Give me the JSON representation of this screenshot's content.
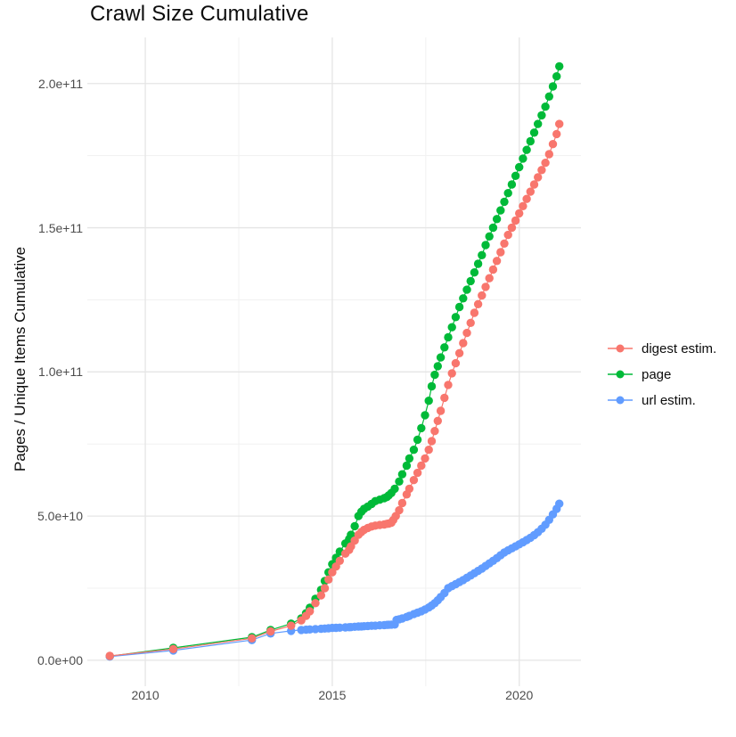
{
  "title": "Crawl Size Cumulative",
  "y_axis_title": "Pages / Unique Items Cumulative",
  "colors": {
    "digest": "#F8766D",
    "page": "#00BA38",
    "url": "#619CFF",
    "grid_major": "#E5E5E5",
    "grid_minor": "#F1F1F1",
    "tick_text": "#4D4D4D",
    "title_text": "#0C0C0C"
  },
  "legend": {
    "position": "right",
    "items": [
      {
        "id": "digest",
        "label": "digest estim.",
        "color": "#F8766D"
      },
      {
        "id": "page",
        "label": "page",
        "color": "#00BA38"
      },
      {
        "id": "url",
        "label": "url estim.",
        "color": "#619CFF"
      }
    ]
  },
  "chart_data": {
    "type": "line",
    "subtype": "line-with-points",
    "title": "Crawl Size Cumulative",
    "xlabel": "",
    "ylabel": "Pages / Unique Items Cumulative",
    "grid": true,
    "legend_position": "right",
    "value_unit": "1e9 pages (value = billions)",
    "xlim": [
      2008.45,
      2021.65
    ],
    "ylim_e9": [
      -9,
      216
    ],
    "x_ticks": [
      2010,
      2015,
      2020
    ],
    "x_tick_labels": [
      "2010",
      "2015",
      "2020"
    ],
    "x_minor_ticks": [
      2012.5,
      2017.5
    ],
    "y_ticks_e9": [
      0,
      50,
      100,
      150,
      200
    ],
    "y_tick_labels": [
      "0.0e+00",
      "5.0e+10",
      "1.0e+11",
      "1.5e+11",
      "2.0e+11"
    ],
    "y_minor_ticks_e9": [
      25,
      75,
      125,
      175
    ],
    "series": [
      {
        "name": "digest estim.",
        "id": "digest",
        "color": "#F8766D",
        "points": [
          [
            2009.05,
            1.5
          ],
          [
            2010.75,
            3.9
          ],
          [
            2012.85,
            7.6
          ],
          [
            2013.35,
            10.0
          ],
          [
            2013.9,
            12.0
          ],
          [
            2014.17,
            13.8
          ],
          [
            2014.3,
            15.4
          ],
          [
            2014.4,
            17.0
          ],
          [
            2014.55,
            19.8
          ],
          [
            2014.7,
            22.5
          ],
          [
            2014.8,
            25.0
          ],
          [
            2014.9,
            28.0
          ],
          [
            2015.0,
            30.5
          ],
          [
            2015.1,
            32.5
          ],
          [
            2015.2,
            34.5
          ],
          [
            2015.35,
            37.0
          ],
          [
            2015.45,
            38.3
          ],
          [
            2015.5,
            39.5
          ],
          [
            2015.6,
            41.5
          ],
          [
            2015.7,
            43.5
          ],
          [
            2015.78,
            44.5
          ],
          [
            2015.85,
            45.2
          ],
          [
            2015.95,
            45.9
          ],
          [
            2016.05,
            46.4
          ],
          [
            2016.15,
            46.7
          ],
          [
            2016.27,
            46.9
          ],
          [
            2016.39,
            47.1
          ],
          [
            2016.46,
            47.3
          ],
          [
            2016.51,
            47.4
          ],
          [
            2016.58,
            47.7
          ],
          [
            2016.63,
            48.6
          ],
          [
            2016.7,
            50.0
          ],
          [
            2016.79,
            52.0
          ],
          [
            2016.87,
            54.5
          ],
          [
            2016.99,
            57.5
          ],
          [
            2017.06,
            59.5
          ],
          [
            2017.18,
            62.5
          ],
          [
            2017.28,
            65.0
          ],
          [
            2017.38,
            67.5
          ],
          [
            2017.48,
            70.0
          ],
          [
            2017.58,
            73.0
          ],
          [
            2017.66,
            76.0
          ],
          [
            2017.74,
            79.5
          ],
          [
            2017.82,
            83.0
          ],
          [
            2017.9,
            86.5
          ],
          [
            2018.0,
            91.0
          ],
          [
            2018.1,
            95.5
          ],
          [
            2018.2,
            99.5
          ],
          [
            2018.3,
            103.0
          ],
          [
            2018.4,
            106.5
          ],
          [
            2018.5,
            110.0
          ],
          [
            2018.6,
            113.5
          ],
          [
            2018.7,
            117.0
          ],
          [
            2018.8,
            120.5
          ],
          [
            2018.9,
            123.5
          ],
          [
            2019.0,
            126.5
          ],
          [
            2019.1,
            129.5
          ],
          [
            2019.2,
            132.5
          ],
          [
            2019.3,
            135.5
          ],
          [
            2019.4,
            138.5
          ],
          [
            2019.5,
            141.5
          ],
          [
            2019.6,
            144.5
          ],
          [
            2019.7,
            147.5
          ],
          [
            2019.8,
            150.0
          ],
          [
            2019.9,
            152.5
          ],
          [
            2020.0,
            155.0
          ],
          [
            2020.1,
            157.5
          ],
          [
            2020.2,
            160.0
          ],
          [
            2020.3,
            162.5
          ],
          [
            2020.4,
            165.0
          ],
          [
            2020.5,
            167.5
          ],
          [
            2020.6,
            170.0
          ],
          [
            2020.7,
            172.5
          ],
          [
            2020.8,
            175.5
          ],
          [
            2020.9,
            179.0
          ],
          [
            2021.0,
            182.5
          ],
          [
            2021.07,
            186.0
          ]
        ]
      },
      {
        "name": "page",
        "id": "page",
        "color": "#00BA38",
        "points": [
          [
            2009.05,
            1.4
          ],
          [
            2010.75,
            4.3
          ],
          [
            2012.85,
            8.0
          ],
          [
            2013.35,
            10.5
          ],
          [
            2013.9,
            12.7
          ],
          [
            2014.17,
            14.5
          ],
          [
            2014.3,
            16.3
          ],
          [
            2014.4,
            18.2
          ],
          [
            2014.55,
            21.3
          ],
          [
            2014.7,
            24.4
          ],
          [
            2014.8,
            27.5
          ],
          [
            2014.9,
            30.5
          ],
          [
            2015.0,
            33.3
          ],
          [
            2015.1,
            35.5
          ],
          [
            2015.2,
            37.7
          ],
          [
            2015.35,
            40.5
          ],
          [
            2015.45,
            42.0
          ],
          [
            2015.5,
            43.5
          ],
          [
            2015.6,
            46.5
          ],
          [
            2015.7,
            50.0
          ],
          [
            2015.78,
            51.5
          ],
          [
            2015.85,
            52.5
          ],
          [
            2015.95,
            53.3
          ],
          [
            2016.05,
            54.2
          ],
          [
            2016.15,
            55.2
          ],
          [
            2016.27,
            55.7
          ],
          [
            2016.39,
            56.2
          ],
          [
            2016.46,
            56.6
          ],
          [
            2016.51,
            57.2
          ],
          [
            2016.58,
            58.0
          ],
          [
            2016.67,
            59.5
          ],
          [
            2016.79,
            62.0
          ],
          [
            2016.87,
            64.5
          ],
          [
            2016.99,
            67.5
          ],
          [
            2017.06,
            70.0
          ],
          [
            2017.18,
            73.0
          ],
          [
            2017.28,
            76.5
          ],
          [
            2017.38,
            80.5
          ],
          [
            2017.48,
            85.0
          ],
          [
            2017.58,
            90.0
          ],
          [
            2017.66,
            95.0
          ],
          [
            2017.74,
            99.0
          ],
          [
            2017.82,
            102.0
          ],
          [
            2017.9,
            105.0
          ],
          [
            2018.0,
            108.5
          ],
          [
            2018.1,
            112.0
          ],
          [
            2018.2,
            115.5
          ],
          [
            2018.3,
            119.0
          ],
          [
            2018.4,
            122.5
          ],
          [
            2018.5,
            125.5
          ],
          [
            2018.6,
            128.5
          ],
          [
            2018.7,
            131.5
          ],
          [
            2018.8,
            134.5
          ],
          [
            2018.9,
            137.5
          ],
          [
            2019.0,
            140.5
          ],
          [
            2019.1,
            144.0
          ],
          [
            2019.2,
            147.0
          ],
          [
            2019.3,
            150.0
          ],
          [
            2019.4,
            153.0
          ],
          [
            2019.5,
            156.0
          ],
          [
            2019.6,
            159.0
          ],
          [
            2019.7,
            162.0
          ],
          [
            2019.8,
            165.0
          ],
          [
            2019.9,
            168.0
          ],
          [
            2020.0,
            171.0
          ],
          [
            2020.1,
            174.0
          ],
          [
            2020.2,
            177.0
          ],
          [
            2020.3,
            180.0
          ],
          [
            2020.4,
            183.0
          ],
          [
            2020.5,
            186.0
          ],
          [
            2020.6,
            189.0
          ],
          [
            2020.7,
            192.0
          ],
          [
            2020.8,
            195.5
          ],
          [
            2020.9,
            199.0
          ],
          [
            2021.0,
            202.5
          ],
          [
            2021.07,
            206.0
          ]
        ]
      },
      {
        "name": "url estim.",
        "id": "url",
        "color": "#619CFF",
        "points": [
          [
            2009.05,
            1.3
          ],
          [
            2010.75,
            3.4
          ],
          [
            2012.85,
            7.0
          ],
          [
            2013.35,
            9.3
          ],
          [
            2013.9,
            10.2
          ],
          [
            2014.17,
            10.5
          ],
          [
            2014.3,
            10.6
          ],
          [
            2014.4,
            10.7
          ],
          [
            2014.55,
            10.8
          ],
          [
            2014.7,
            10.9
          ],
          [
            2014.8,
            11.0
          ],
          [
            2014.9,
            11.1
          ],
          [
            2015.0,
            11.2
          ],
          [
            2015.1,
            11.25
          ],
          [
            2015.2,
            11.3
          ],
          [
            2015.35,
            11.4
          ],
          [
            2015.45,
            11.45
          ],
          [
            2015.5,
            11.5
          ],
          [
            2015.6,
            11.6
          ],
          [
            2015.7,
            11.7
          ],
          [
            2015.78,
            11.75
          ],
          [
            2015.85,
            11.8
          ],
          [
            2015.95,
            11.9
          ],
          [
            2016.05,
            11.95
          ],
          [
            2016.15,
            12.0
          ],
          [
            2016.27,
            12.1
          ],
          [
            2016.39,
            12.2
          ],
          [
            2016.46,
            12.25
          ],
          [
            2016.51,
            12.3
          ],
          [
            2016.58,
            12.35
          ],
          [
            2016.67,
            12.4
          ],
          [
            2016.72,
            14.0
          ],
          [
            2016.79,
            14.2
          ],
          [
            2016.87,
            14.5
          ],
          [
            2016.99,
            15.0
          ],
          [
            2017.06,
            15.4
          ],
          [
            2017.18,
            16.0
          ],
          [
            2017.28,
            16.5
          ],
          [
            2017.38,
            17.0
          ],
          [
            2017.48,
            17.6
          ],
          [
            2017.58,
            18.3
          ],
          [
            2017.66,
            19.0
          ],
          [
            2017.74,
            19.8
          ],
          [
            2017.82,
            20.8
          ],
          [
            2017.9,
            21.9
          ],
          [
            2018.0,
            23.3
          ],
          [
            2018.1,
            25.0
          ],
          [
            2018.2,
            25.7
          ],
          [
            2018.3,
            26.4
          ],
          [
            2018.4,
            27.1
          ],
          [
            2018.5,
            27.8
          ],
          [
            2018.6,
            28.6
          ],
          [
            2018.7,
            29.4
          ],
          [
            2018.8,
            30.2
          ],
          [
            2018.9,
            31.0
          ],
          [
            2019.0,
            31.8
          ],
          [
            2019.1,
            32.7
          ],
          [
            2019.2,
            33.6
          ],
          [
            2019.3,
            34.5
          ],
          [
            2019.4,
            35.4
          ],
          [
            2019.5,
            36.4
          ],
          [
            2019.6,
            37.4
          ],
          [
            2019.7,
            38.1
          ],
          [
            2019.8,
            38.8
          ],
          [
            2019.9,
            39.5
          ],
          [
            2020.0,
            40.2
          ],
          [
            2020.1,
            40.9
          ],
          [
            2020.2,
            41.7
          ],
          [
            2020.3,
            42.5
          ],
          [
            2020.4,
            43.4
          ],
          [
            2020.5,
            44.4
          ],
          [
            2020.6,
            45.6
          ],
          [
            2020.7,
            47.0
          ],
          [
            2020.8,
            48.7
          ],
          [
            2020.9,
            50.6
          ],
          [
            2021.0,
            52.5
          ],
          [
            2021.07,
            54.3
          ]
        ]
      }
    ]
  }
}
